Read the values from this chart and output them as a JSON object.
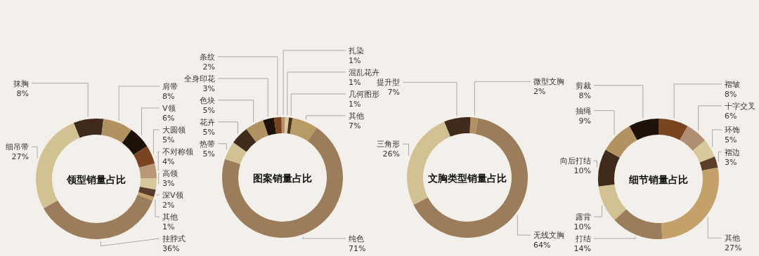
{
  "chart_data": [
    {
      "type": "donut",
      "title": "领型销量占比",
      "categories": [
        "抹胸",
        "肩带",
        "V领",
        "大圆领",
        "不对称领",
        "高领",
        "深V领",
        "其他",
        "挂脖式",
        "细吊带"
      ],
      "values": [
        8,
        8,
        6,
        5,
        4,
        3,
        2,
        1,
        36,
        27
      ],
      "value_labels": [
        "8%",
        "8%",
        "6%",
        "5%",
        "4%",
        "3%",
        "2%",
        "1%",
        "36%",
        "27%"
      ],
      "colors": [
        "#3f2a1c",
        "#b39262",
        "#1e1208",
        "#7a4420",
        "#b89676",
        "#d8c89b",
        "#5a3e2a",
        "#c4a06a",
        "#9c7d5b",
        "#d2c193"
      ]
    },
    {
      "type": "donut",
      "title": "图案销量占比",
      "categories": [
        "扎染",
        "混乱花卉",
        "几何图形",
        "其他",
        "纯色",
        "热带",
        "花卉",
        "色块",
        "全身印花",
        "条纹"
      ],
      "values": [
        1,
        1,
        1,
        7,
        71,
        5,
        5,
        5,
        3,
        2
      ],
      "value_labels": [
        "1%",
        "1%",
        "1%",
        "7%",
        "71%",
        "5%",
        "5%",
        "5%",
        "3%",
        "2%"
      ],
      "colors": [
        "#b88e6e",
        "#d8c89b",
        "#4a3222",
        "#b89a65",
        "#9c7d5b",
        "#d2c193",
        "#3f2a1c",
        "#b39262",
        "#1e1208",
        "#7a4420"
      ]
    },
    {
      "type": "donut",
      "title": "文胸类型销量占比",
      "categories": [
        "微型文胸",
        "无线文胸",
        "三角形",
        "提升型"
      ],
      "values": [
        2,
        64,
        26,
        7
      ],
      "value_labels": [
        "2%",
        "64%",
        "26%",
        "7%"
      ],
      "colors": [
        "#b39262",
        "#9c7d5b",
        "#d2c193",
        "#3f2a1c"
      ]
    },
    {
      "type": "donut",
      "title": "细节销量占比",
      "categories": [
        "褶皱",
        "十字交叉",
        "环饰",
        "褶边",
        "其他",
        "打结",
        "露背",
        "向后打结",
        "抽绳",
        "剪裁"
      ],
      "values": [
        8,
        6,
        5,
        3,
        27,
        14,
        10,
        10,
        9,
        8
      ],
      "value_labels": [
        "8%",
        "6%",
        "5%",
        "3%",
        "27%",
        "14%",
        "10%",
        "10%",
        "9%",
        "8%"
      ],
      "colors": [
        "#7a4420",
        "#b08e72",
        "#d8c89b",
        "#5a3e2a",
        "#c4a06a",
        "#9c7d5b",
        "#d2c193",
        "#3f2a1c",
        "#b39262",
        "#1e1208"
      ]
    }
  ]
}
